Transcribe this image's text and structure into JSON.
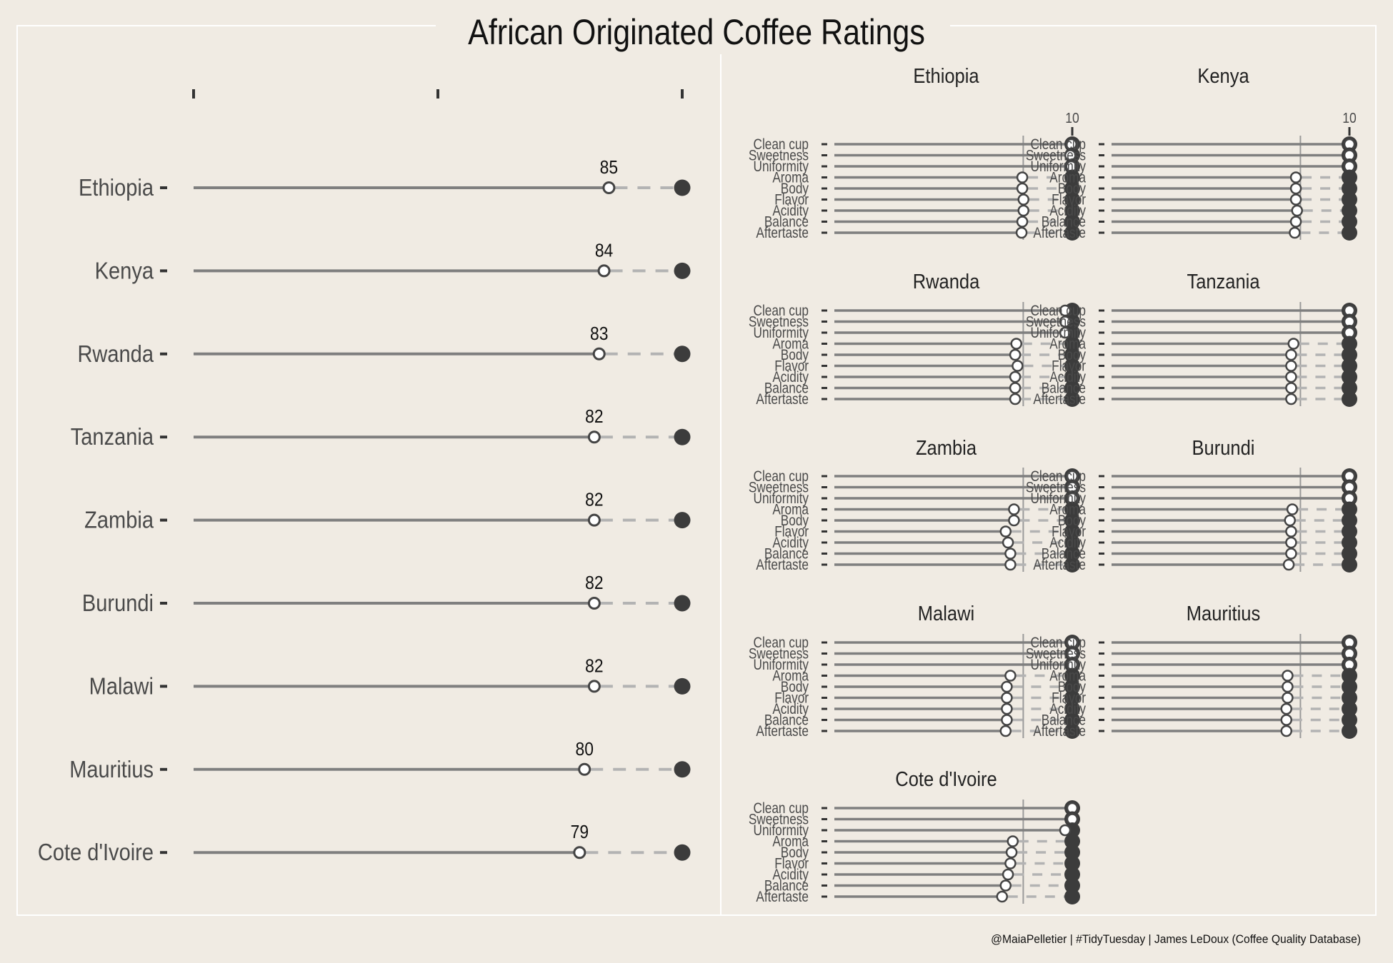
{
  "title": "African Originated Coffee Ratings",
  "caption": "@MaiaPelletier | #TidyTuesday | James LeDoux (Coffee Quality Database)",
  "colors": {
    "background": "#f0ebe3",
    "line": "#7f7f7f",
    "dashed": "#b3b3b3",
    "point_fill_open": "#ffffff",
    "point_dark": "#3c3c3c",
    "text": "#4a4a4a",
    "title_text": "#111111",
    "panel_border": "#ffffff"
  },
  "chart_data": [
    {
      "type": "lollipop",
      "title": "African Originated Coffee Ratings",
      "orientation": "horizontal",
      "xlim": [
        0,
        100
      ],
      "max_value": 100,
      "categories": [
        "Ethiopia",
        "Kenya",
        "Rwanda",
        "Tanzania",
        "Zambia",
        "Burundi",
        "Malawi",
        "Mauritius",
        "Cote d'Ivoire"
      ],
      "values": [
        85,
        84,
        83,
        82,
        82,
        82,
        82,
        80,
        79
      ],
      "data_labels": [
        "85",
        "84",
        "83",
        "82",
        "82",
        "82",
        "82",
        "80",
        "79"
      ]
    },
    {
      "type": "lollipop",
      "faceted": true,
      "max_value": 10,
      "max_label": "10",
      "xlim": [
        0,
        10
      ],
      "reference_line": 8,
      "attributes": [
        "Clean cup",
        "Sweetness",
        "Uniformity",
        "Aroma",
        "Body",
        "Flavor",
        "Acidity",
        "Balance",
        "Aftertaste"
      ],
      "facets": [
        {
          "name": "Ethiopia",
          "values": [
            9.96,
            9.92,
            9.96,
            7.9,
            7.9,
            7.95,
            7.95,
            7.9,
            7.87
          ]
        },
        {
          "name": "Kenya",
          "values": [
            10.0,
            10.0,
            10.0,
            7.75,
            7.75,
            7.75,
            7.8,
            7.75,
            7.7
          ]
        },
        {
          "name": "Rwanda",
          "values": [
            9.7,
            9.7,
            9.7,
            7.65,
            7.6,
            7.7,
            7.6,
            7.6,
            7.6
          ]
        },
        {
          "name": "Tanzania",
          "values": [
            10.0,
            10.0,
            10.0,
            7.65,
            7.55,
            7.55,
            7.55,
            7.55,
            7.55
          ]
        },
        {
          "name": "Zambia",
          "values": [
            10.0,
            10.0,
            10.0,
            7.55,
            7.55,
            7.2,
            7.3,
            7.4,
            7.4
          ]
        },
        {
          "name": "Burundi",
          "values": [
            10.0,
            10.0,
            10.0,
            7.6,
            7.5,
            7.55,
            7.55,
            7.55,
            7.45
          ]
        },
        {
          "name": "Malawi",
          "values": [
            10.0,
            10.0,
            10.0,
            7.4,
            7.25,
            7.25,
            7.25,
            7.25,
            7.2
          ]
        },
        {
          "name": "Mauritius",
          "values": [
            10.0,
            10.0,
            10.0,
            7.4,
            7.4,
            7.4,
            7.35,
            7.35,
            7.35
          ]
        },
        {
          "name": "Cote d'Ivoire",
          "values": [
            10.0,
            10.0,
            9.7,
            7.5,
            7.45,
            7.4,
            7.3,
            7.2,
            7.05
          ]
        }
      ]
    }
  ]
}
